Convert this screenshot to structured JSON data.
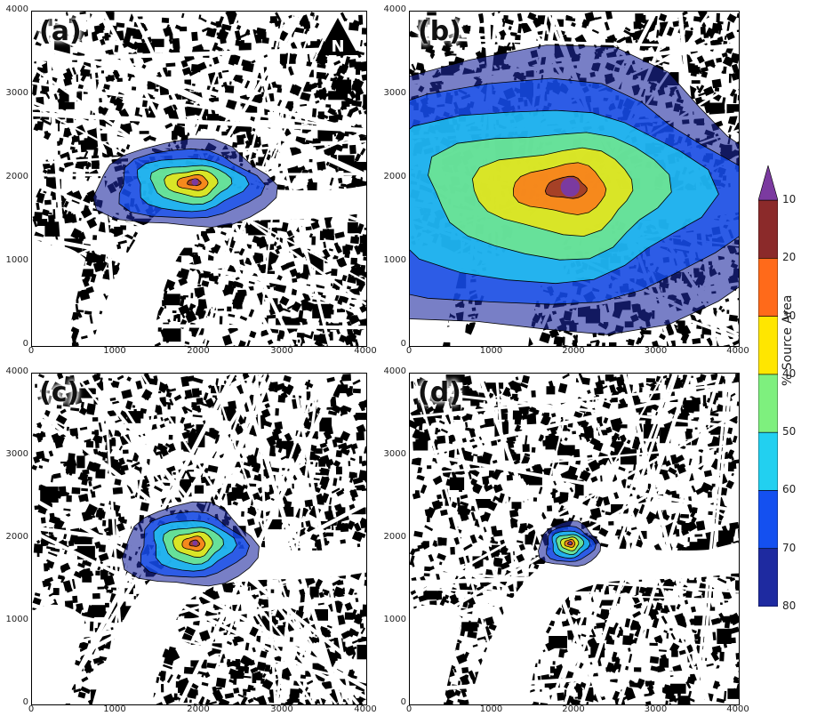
{
  "panels": [
    {
      "label": "(a)",
      "north": true,
      "source": {
        "cx": 1950,
        "cy": 1960,
        "rx": 1000,
        "ry": 520,
        "skew": 0.15
      }
    },
    {
      "label": "(b)",
      "north": false,
      "source": {
        "cx": 1950,
        "cy": 1900,
        "rx": 2900,
        "ry": 1700,
        "skew": 0.25
      }
    },
    {
      "label": "(c)",
      "north": false,
      "source": {
        "cx": 1950,
        "cy": 1950,
        "rx": 760,
        "ry": 500,
        "skew": 0.1
      }
    },
    {
      "label": "(d)",
      "north": false,
      "source": {
        "cx": 1950,
        "cy": 1950,
        "rx": 360,
        "ry": 270,
        "skew": 0.05
      }
    }
  ],
  "axes": {
    "x_ticks": [
      "0",
      "1000",
      "2000",
      "3000",
      "4000"
    ],
    "y_ticks": [
      "0",
      "1000",
      "2000",
      "3000",
      "4000"
    ],
    "range": [
      0,
      4000
    ]
  },
  "north_label": "N",
  "colorbar": {
    "title": "% Source Area",
    "ticks": [
      "10",
      "20",
      "30",
      "40",
      "50",
      "60",
      "70",
      "80"
    ],
    "levels": [
      {
        "value": 10,
        "color": "#8b2a2a"
      },
      {
        "value": 20,
        "color": "#ff6a1a"
      },
      {
        "value": 30,
        "color": "#ffe600"
      },
      {
        "value": 40,
        "color": "#7ef07e"
      },
      {
        "value": 50,
        "color": "#22d0f0"
      },
      {
        "value": 60,
        "color": "#1450f0"
      },
      {
        "value": 70,
        "color": "#1e2aa0"
      }
    ],
    "extend_color": "#7b3aa0"
  }
}
